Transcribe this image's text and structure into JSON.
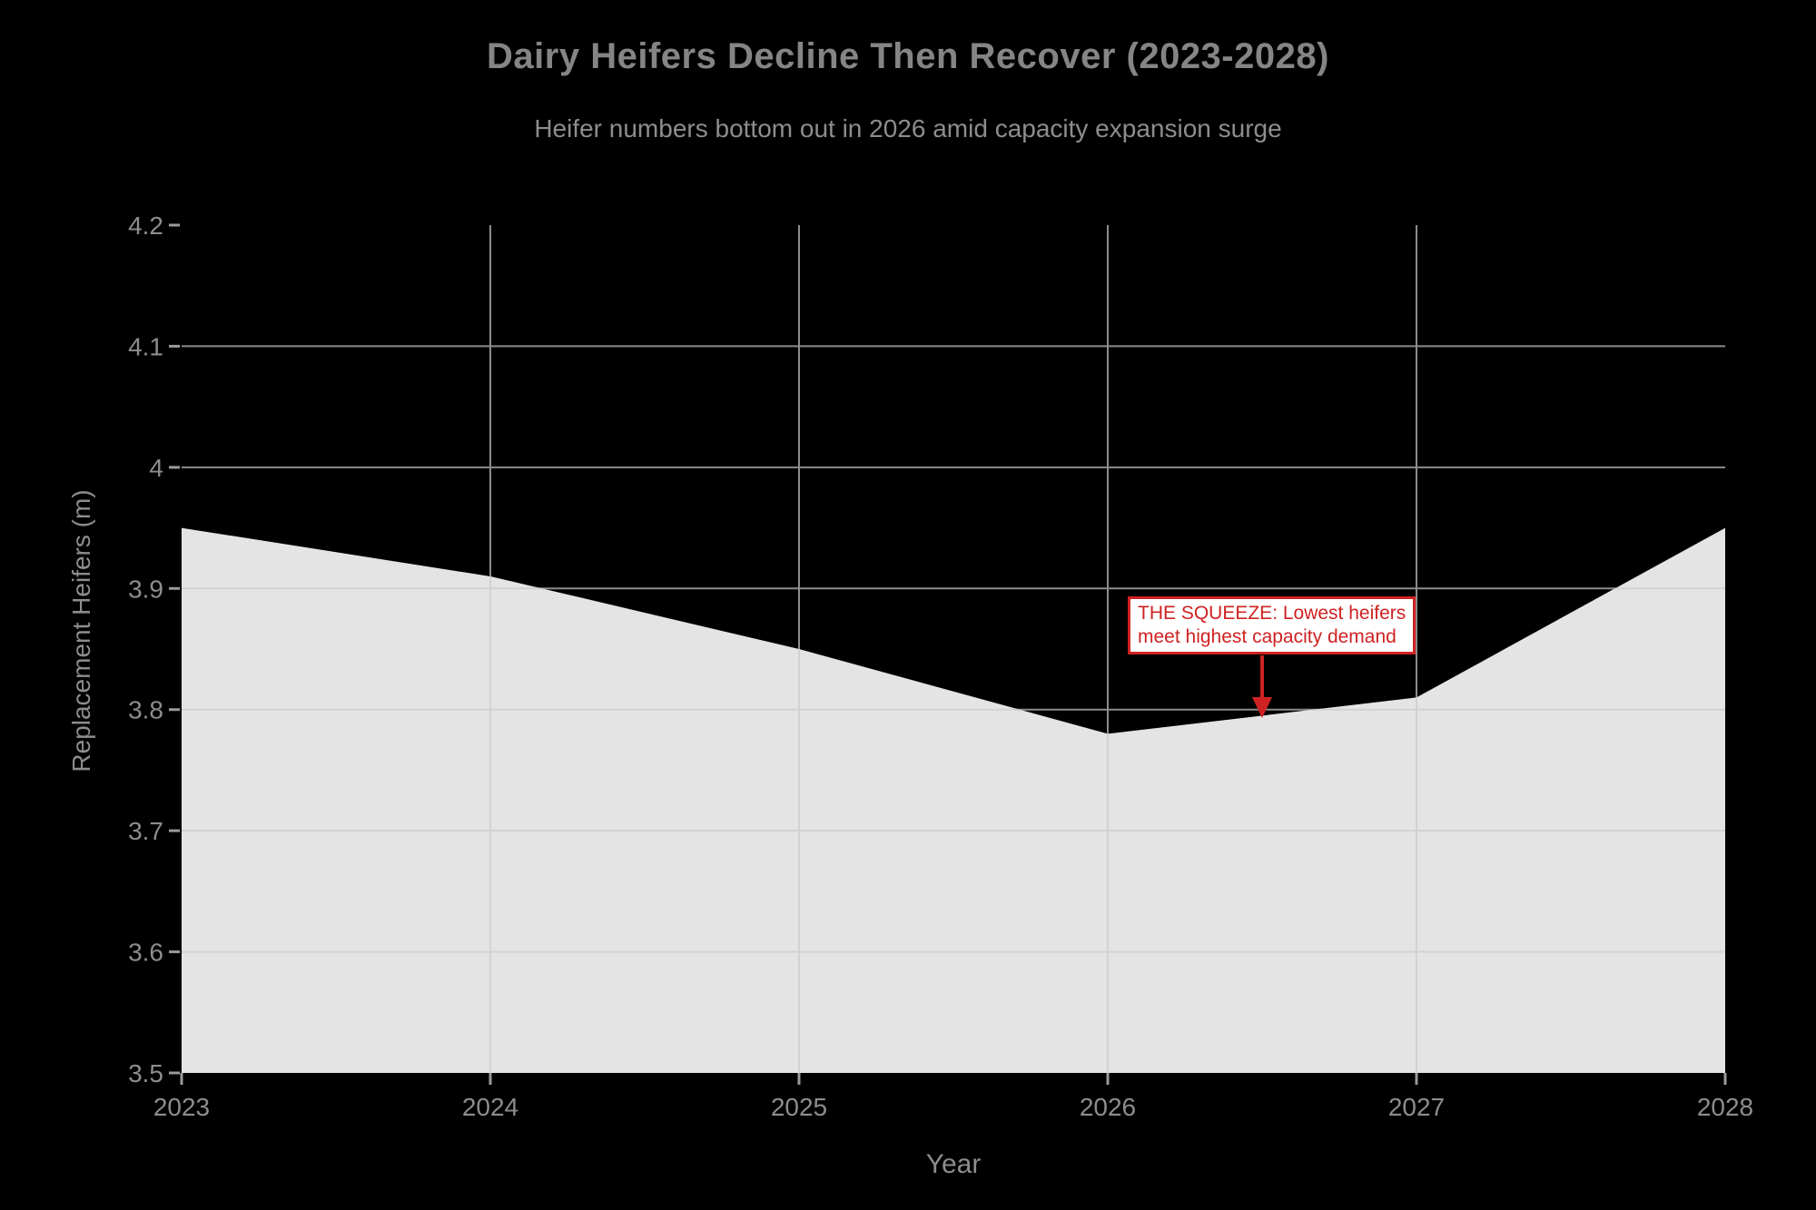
{
  "title": "Dairy Heifers Decline Then Recover (2023-2028)",
  "subtitle": "Heifer numbers bottom out in 2026 amid capacity expansion surge",
  "chart_data": {
    "type": "area",
    "title": "Dairy Heifers Decline Then Recover (2023-2028)",
    "subtitle": "Heifer numbers bottom out in 2026 amid capacity expansion surge",
    "xlabel": "Year",
    "ylabel": "Replacement Heifers (m)",
    "x": [
      2023,
      2024,
      2025,
      2026,
      2027,
      2028
    ],
    "xtick_labels": [
      "2023",
      "2024",
      "2025",
      "2026",
      "2027",
      "2028"
    ],
    "series": [
      {
        "name": "Replacement Heifers",
        "values": [
          3.95,
          3.91,
          3.85,
          3.78,
          3.81,
          3.95
        ]
      }
    ],
    "xlim": [
      2023,
      2028
    ],
    "ylim": [
      3.5,
      4.2
    ],
    "yticks": [
      3.5,
      3.6,
      3.7,
      3.8,
      3.9,
      4.0,
      4.1,
      4.2
    ],
    "ytick_labels": [
      "3.5",
      "3.6",
      "3.7",
      "3.8",
      "3.9",
      "4",
      "4.1",
      "4.2"
    ],
    "grid": true,
    "legend": false,
    "annotation": {
      "line1": "THE SQUEEZE: Lowest heifers",
      "line2": "meet highest capacity demand",
      "arrow_x": 2026.5,
      "arrow_tip_y": 3.793
    },
    "colors": {
      "background": "#000000",
      "area_fill": "#e4e4e4",
      "grid": "#8c8c8c",
      "grid_on_area": "#d2d2d2",
      "tick": "#9a9a9a",
      "text": "#8d8d8d",
      "title": "#858585",
      "annotation_red": "#cf2222"
    }
  }
}
